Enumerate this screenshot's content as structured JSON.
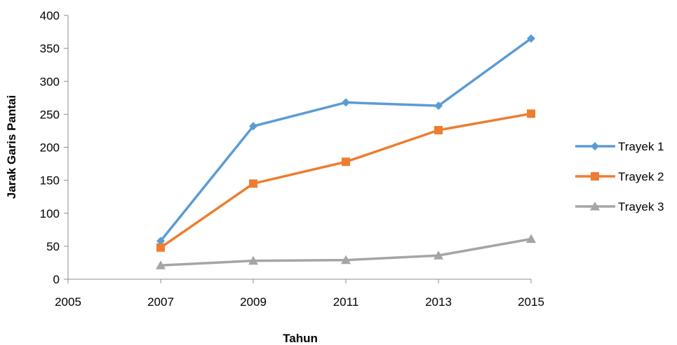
{
  "chart_data": {
    "type": "line",
    "title": "",
    "xlabel": "Tahun",
    "ylabel": "Jarak Garis Pantai",
    "xlim": [
      2005,
      2015
    ],
    "ylim": [
      0,
      400
    ],
    "xticks": [
      2005,
      2007,
      2009,
      2011,
      2013,
      2015
    ],
    "yticks": [
      0,
      50,
      100,
      150,
      200,
      250,
      300,
      350,
      400
    ],
    "grid": false,
    "legend_position": "right",
    "x": [
      2007,
      2009,
      2011,
      2013,
      2015
    ],
    "series": [
      {
        "name": "Trayek 1",
        "color": "#5B9BD5",
        "marker": "diamond",
        "values": [
          58,
          232,
          268,
          263,
          365
        ]
      },
      {
        "name": "Trayek 2",
        "color": "#ED7D31",
        "marker": "square",
        "values": [
          48,
          145,
          178,
          226,
          251
        ]
      },
      {
        "name": "Trayek 3",
        "color": "#A5A5A5",
        "marker": "triangle",
        "values": [
          21,
          28,
          29,
          36,
          61
        ]
      }
    ]
  }
}
